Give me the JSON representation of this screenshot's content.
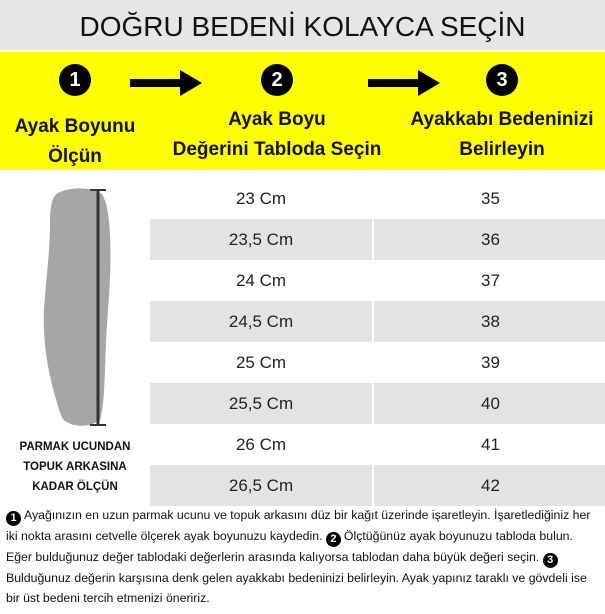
{
  "header": {
    "title": "DOĞRU BEDENİ KOLAYCA SEÇİN"
  },
  "steps": [
    {
      "number": "1",
      "lines": [
        "Ayak Boyunu",
        "Ölçün"
      ]
    },
    {
      "number": "2",
      "lines": [
        "Ayak Boyu",
        "Değerini Tabloda Seçin"
      ]
    },
    {
      "number": "3",
      "lines": [
        "Ayakkabı Bedeninizi",
        "Belirleyin"
      ]
    }
  ],
  "foot_caption": [
    "PARMAK UCUNDAN",
    "TOPUK ARKASINA",
    "KADAR ÖLÇÜN"
  ],
  "table": {
    "rows": [
      [
        "23 Cm",
        "35"
      ],
      [
        "23,5 Cm",
        "36"
      ],
      [
        "24 Cm",
        "37"
      ],
      [
        "24,5 Cm",
        "38"
      ],
      [
        "25 Cm",
        "39"
      ],
      [
        "25,5 Cm",
        "40"
      ],
      [
        "26 Cm",
        "41"
      ],
      [
        "26,5 Cm",
        "42"
      ]
    ]
  },
  "instructions": [
    {
      "number": "1",
      "text": "Ayağınızın en uzun parmak ucunu ve topuk arkasını düz bir kağıt üzerinde işaretleyin. İşaretlediğiniz her iki nokta arasını cetvelle ölçerek ayak boyunuzu kaydedin."
    },
    {
      "number": "2",
      "text": "Ölçtüğünüz ayak boyunuzu tabloda bulun. Eğer bulduğunuz değer tablodaki değerlerin arasında kalıyorsa tablodan daha büyük değeri seçin."
    },
    {
      "number": "3",
      "text": "Bulduğunuz değerin karşısına denk gelen ayakkabı bedeninizi belirleyin. Ayak yapınız taraklı ve gövdeli ise bir üst bedeni tercih etmenizi öneririz."
    }
  ]
}
